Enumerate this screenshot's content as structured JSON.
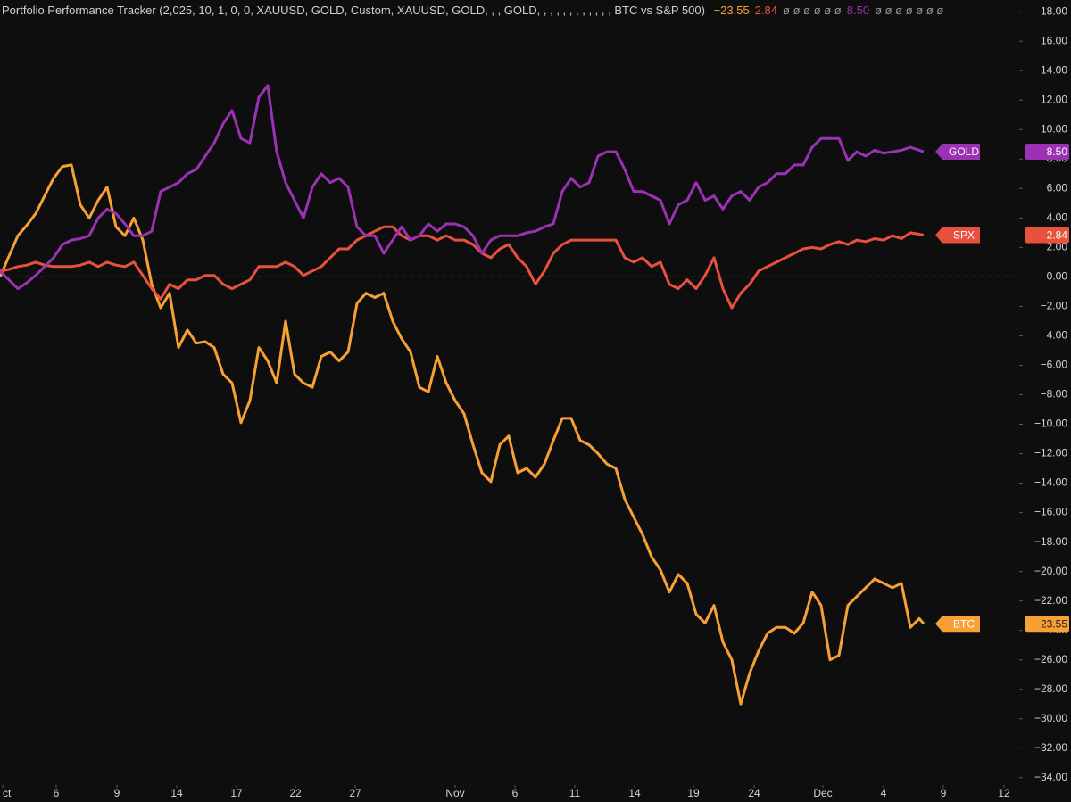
{
  "chart_data": {
    "type": "line",
    "title": "Portfolio Performance Tracker (2,025, 10, 1, 0, 0, XAUUSD, GOLD, Custom, XAUUSD, GOLD, , , GOLD, , , , , , , , , , , , BTC vs S&P 500)",
    "header_placeholders": [
      "ø ø ø ø ø ø",
      "ø ø ø ø ø ø ø"
    ],
    "zero_line": 0,
    "x": [
      0,
      1,
      2,
      3,
      4,
      5,
      6,
      7,
      8,
      9,
      10,
      11,
      12,
      13,
      14,
      15,
      16,
      17,
      18,
      19,
      20,
      21,
      22,
      23,
      24,
      25,
      26,
      27,
      28,
      29,
      30,
      31,
      32,
      33,
      34,
      35,
      36,
      37,
      38,
      39,
      40,
      41,
      42,
      43,
      44,
      45,
      46,
      47,
      48,
      49,
      50,
      51,
      52,
      53,
      54,
      55,
      56,
      57,
      58,
      59,
      60,
      61,
      62,
      63,
      64,
      65,
      66,
      67,
      68,
      69,
      70,
      71,
      72,
      73,
      74,
      75,
      76,
      77,
      78,
      79,
      80,
      81,
      82,
      83,
      84,
      85,
      86,
      87,
      88,
      89,
      90,
      91,
      92,
      93,
      94,
      95,
      96,
      97,
      98,
      99,
      100,
      101,
      102,
      103,
      103.5
    ],
    "xlim": [
      0,
      114
    ],
    "xticks": [
      {
        "value": 0.3,
        "label": "ct"
      },
      {
        "value": 6.3,
        "label": "6"
      },
      {
        "value": 13.1,
        "label": "9"
      },
      {
        "value": 19.8,
        "label": "14"
      },
      {
        "value": 26.5,
        "label": "17"
      },
      {
        "value": 33.1,
        "label": "22"
      },
      {
        "value": 39.8,
        "label": "27"
      },
      {
        "value": 51,
        "label": "Nov"
      },
      {
        "value": 57.7,
        "label": "6"
      },
      {
        "value": 64.4,
        "label": "11"
      },
      {
        "value": 71.1,
        "label": "14"
      },
      {
        "value": 77.7,
        "label": "19"
      },
      {
        "value": 84.5,
        "label": "24"
      },
      {
        "value": 92.2,
        "label": "Dec"
      },
      {
        "value": 99,
        "label": "4"
      },
      {
        "value": 105.7,
        "label": "9"
      },
      {
        "value": 112.5,
        "label": "12"
      }
    ],
    "ylim": [
      -34.5,
      18.8
    ],
    "yticks": [
      {
        "value": 18,
        "label": "18.00"
      },
      {
        "value": 16,
        "label": "16.00"
      },
      {
        "value": 14,
        "label": "14.00"
      },
      {
        "value": 12,
        "label": "12.00"
      },
      {
        "value": 10,
        "label": "10.00"
      },
      {
        "value": 8,
        "label": "8.00"
      },
      {
        "value": 6,
        "label": "6.00"
      },
      {
        "value": 4,
        "label": "4.00"
      },
      {
        "value": 2,
        "label": "2.00"
      },
      {
        "value": 0,
        "label": "0.00"
      },
      {
        "value": -2,
        "label": "−2.00"
      },
      {
        "value": -4,
        "label": "−4.00"
      },
      {
        "value": -6,
        "label": "−6.00"
      },
      {
        "value": -8,
        "label": "−8.00"
      },
      {
        "value": -10,
        "label": "−10.00"
      },
      {
        "value": -12,
        "label": "−12.00"
      },
      {
        "value": -14,
        "label": "−14.00"
      },
      {
        "value": -16,
        "label": "−16.00"
      },
      {
        "value": -18,
        "label": "−18.00"
      },
      {
        "value": -20,
        "label": "−20.00"
      },
      {
        "value": -22,
        "label": "−22.00"
      },
      {
        "value": -24,
        "label": "−24.00"
      },
      {
        "value": -26,
        "label": "−26.00"
      },
      {
        "value": -28,
        "label": "−28.00"
      },
      {
        "value": -30,
        "label": "−30.00"
      },
      {
        "value": -32,
        "label": "−32.00"
      },
      {
        "value": -34,
        "label": "−34.00"
      }
    ],
    "series": [
      {
        "name": "BTC",
        "color": "#f7a035",
        "text_color": "#1a1a1a",
        "last_label": "−23.55",
        "values": [
          0,
          1.4,
          2.8,
          3.5,
          4.3,
          5.5,
          6.7,
          7.5,
          7.6,
          4.9,
          4.0,
          5.2,
          6.1,
          3.4,
          2.8,
          4.0,
          2.5,
          -0.5,
          -2.1,
          -1.1,
          -4.8,
          -3.6,
          -4.5,
          -4.4,
          -4.8,
          -6.6,
          -7.2,
          -9.9,
          -8.4,
          -4.8,
          -5.7,
          -7.2,
          -3.0,
          -6.6,
          -7.2,
          -7.5,
          -5.4,
          -5.1,
          -5.7,
          -5.1,
          -1.8,
          -1.1,
          -1.4,
          -1.1,
          -3.0,
          -4.2,
          -5.1,
          -7.5,
          -7.8,
          -5.4,
          -7.2,
          -8.4,
          -9.3,
          -11.4,
          -13.3,
          -13.9,
          -11.4,
          -10.8,
          -13.3,
          -13.0,
          -13.6,
          -12.7,
          -11.1,
          -9.6,
          -9.6,
          -11.1,
          -11.4,
          -12.0,
          -12.7,
          -13.0,
          -15.1,
          -16.3,
          -17.5,
          -19.0,
          -19.9,
          -21.4,
          -20.2,
          -20.8,
          -22.9,
          -23.5,
          -22.3,
          -24.8,
          -26.0,
          -29.0,
          -26.9,
          -25.4,
          -24.2,
          -23.8,
          -23.8,
          -24.2,
          -23.5,
          -21.4,
          -22.3,
          -26.0,
          -25.7,
          -22.3,
          -21.7,
          -21.1,
          -20.5,
          -20.8,
          -21.1,
          -20.8,
          -23.8,
          -23.2,
          -23.55
        ]
      },
      {
        "name": "SPX",
        "color": "#e8513d",
        "text_color": "#ffffff",
        "last_label": "2.84",
        "values": [
          0.4,
          0.5,
          0.7,
          0.8,
          1.0,
          0.8,
          0.7,
          0.7,
          0.7,
          0.8,
          1.0,
          0.7,
          1.0,
          0.8,
          0.7,
          1.0,
          0.1,
          -0.8,
          -1.5,
          -0.5,
          -0.8,
          -0.2,
          -0.2,
          0.1,
          0.1,
          -0.5,
          -0.8,
          -0.5,
          -0.2,
          0.7,
          0.7,
          0.7,
          1.0,
          0.7,
          0.1,
          0.4,
          0.7,
          1.3,
          1.9,
          1.9,
          2.5,
          2.8,
          3.1,
          3.4,
          3.4,
          2.8,
          2.5,
          2.8,
          2.8,
          2.5,
          2.8,
          2.5,
          2.5,
          2.2,
          1.6,
          1.3,
          1.9,
          2.2,
          1.3,
          0.7,
          -0.5,
          0.4,
          1.6,
          2.2,
          2.5,
          2.5,
          2.5,
          2.5,
          2.5,
          2.5,
          1.3,
          1.0,
          1.3,
          0.7,
          1.0,
          -0.5,
          -0.8,
          -0.2,
          -0.8,
          0.1,
          1.3,
          -0.8,
          -2.1,
          -1.1,
          -0.5,
          0.4,
          0.7,
          1.0,
          1.3,
          1.6,
          1.9,
          2.0,
          1.9,
          2.2,
          2.4,
          2.2,
          2.5,
          2.4,
          2.6,
          2.5,
          2.8,
          2.6,
          3.0,
          2.9,
          2.84
        ]
      },
      {
        "name": "GOLD",
        "color": "#9b32b4",
        "text_color": "#ffffff",
        "last_label": "8.50",
        "values": [
          0.4,
          -0.2,
          -0.8,
          -0.4,
          0.1,
          0.7,
          1.3,
          2.2,
          2.5,
          2.6,
          2.8,
          4.0,
          4.6,
          4.3,
          3.6,
          2.8,
          2.8,
          3.1,
          5.8,
          6.1,
          6.4,
          7.0,
          7.3,
          8.2,
          9.1,
          10.4,
          11.3,
          9.4,
          9.1,
          12.2,
          13.0,
          8.5,
          6.4,
          5.2,
          4.0,
          6.1,
          7.0,
          6.4,
          6.7,
          6.1,
          3.4,
          2.8,
          2.8,
          1.6,
          2.5,
          3.4,
          2.5,
          2.8,
          3.6,
          3.1,
          3.6,
          3.6,
          3.4,
          2.8,
          1.6,
          2.5,
          2.8,
          2.8,
          2.8,
          3.0,
          3.1,
          3.4,
          3.6,
          5.8,
          6.7,
          6.1,
          6.4,
          8.2,
          8.5,
          8.5,
          7.3,
          5.8,
          5.8,
          5.5,
          5.2,
          3.6,
          4.9,
          5.2,
          6.4,
          5.2,
          5.5,
          4.6,
          5.5,
          5.8,
          5.2,
          6.1,
          6.4,
          7.0,
          7.0,
          7.6,
          7.6,
          8.8,
          9.4,
          9.4,
          9.4,
          7.9,
          8.5,
          8.2,
          8.6,
          8.4,
          8.5,
          8.6,
          8.8,
          8.6,
          8.5
        ]
      }
    ]
  }
}
